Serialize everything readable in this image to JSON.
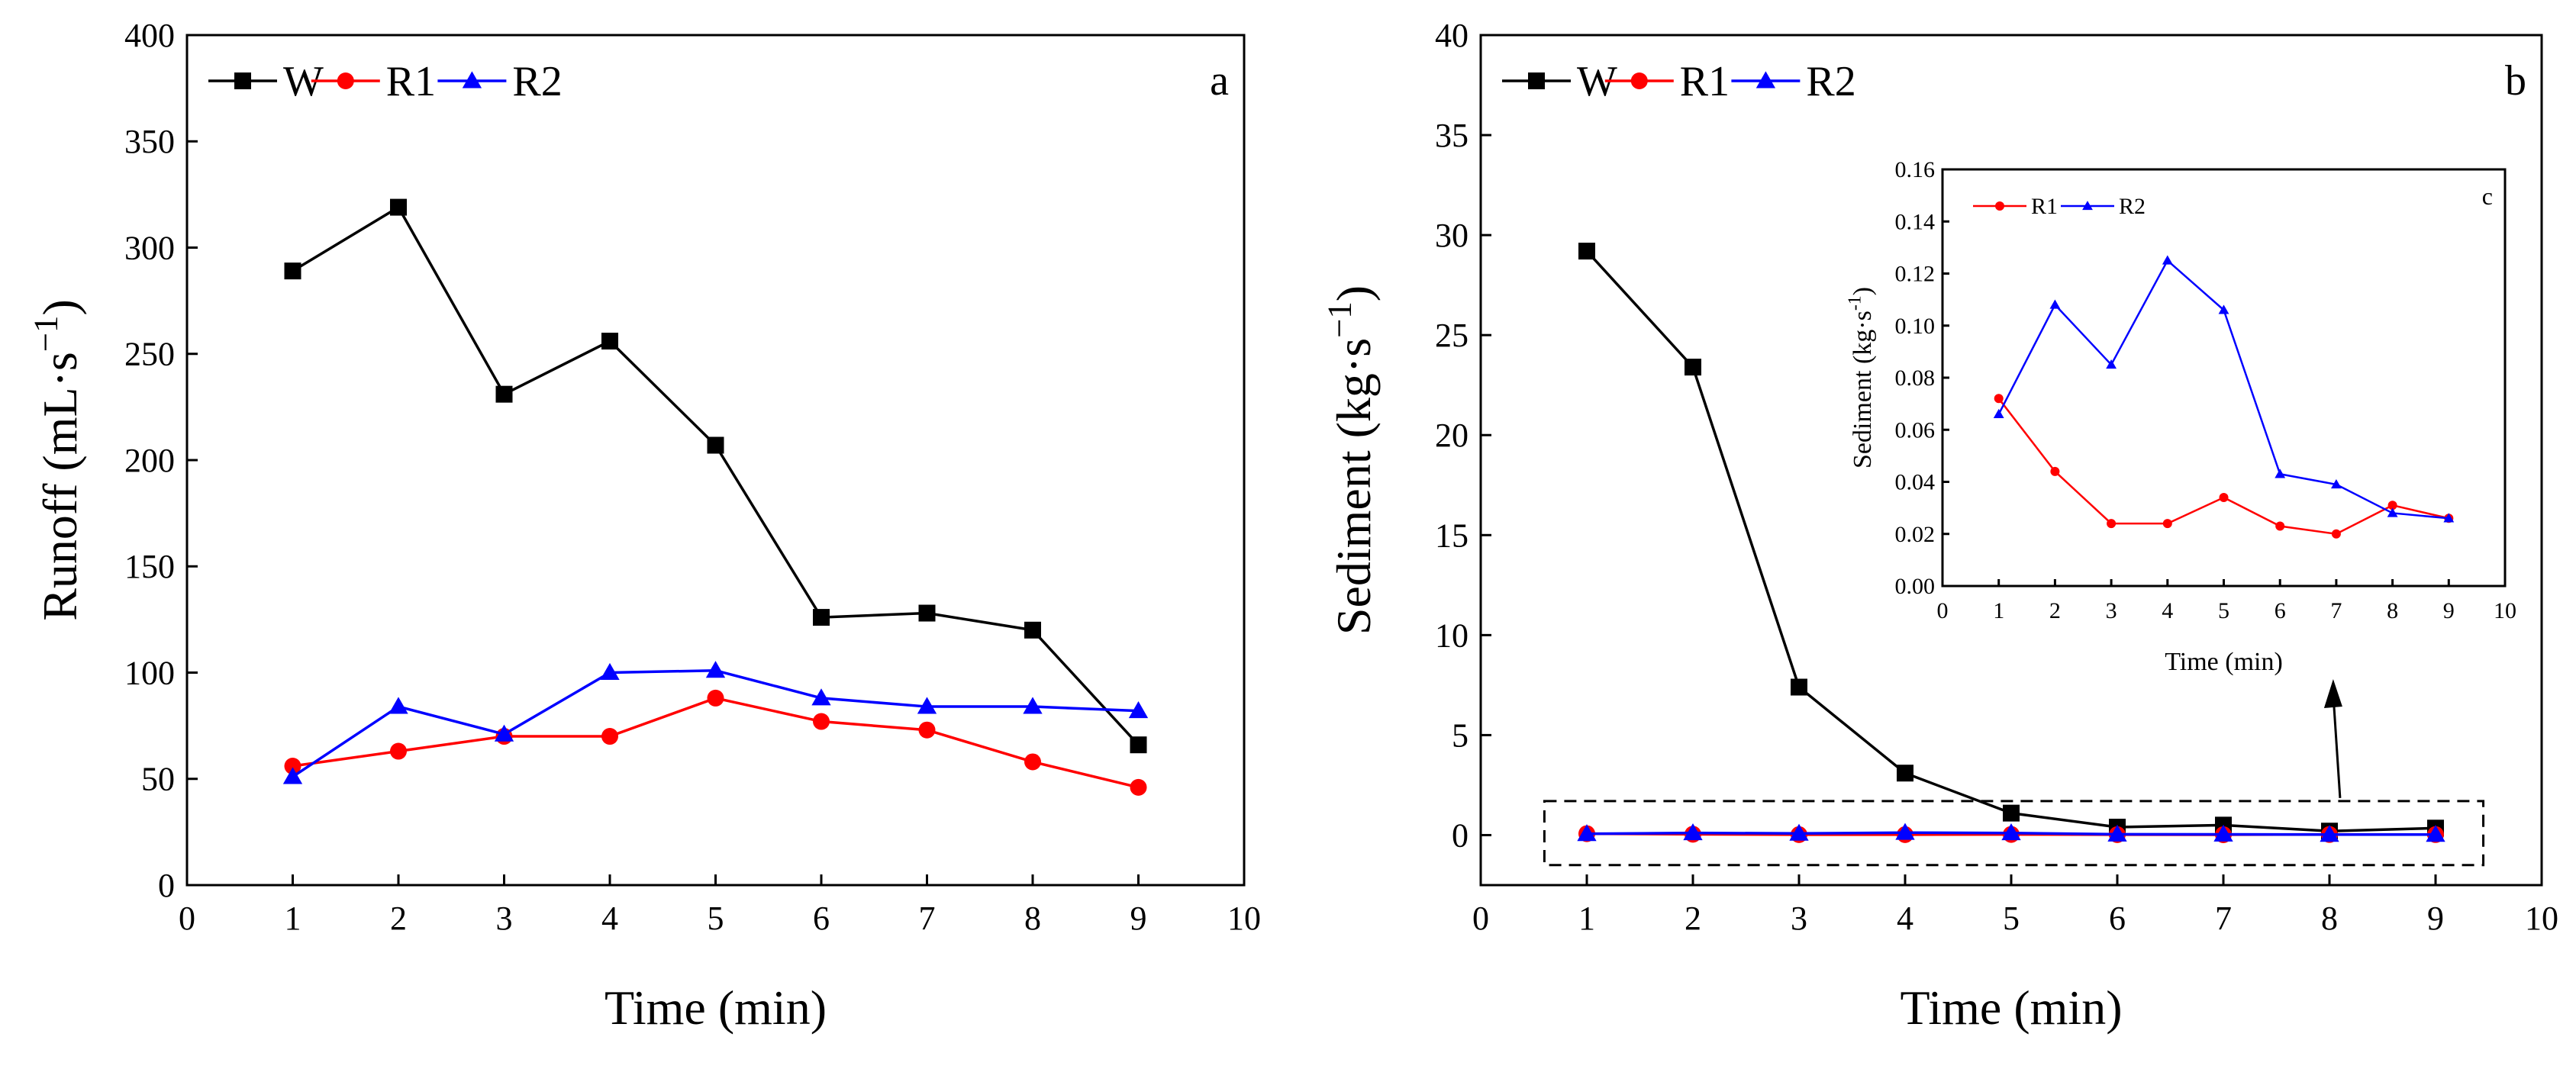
{
  "chart_data": [
    {
      "panel": "a",
      "type": "line",
      "panel_label": "a",
      "xlabel": "Time (min)",
      "ylabel": "Runoff (mL·s",
      "ylabel_sup": "−1",
      "xlim": [
        0,
        10
      ],
      "ylim": [
        0,
        400
      ],
      "xticks": [
        0,
        1,
        2,
        3,
        4,
        5,
        6,
        7,
        8,
        9,
        10
      ],
      "yticks": [
        0,
        50,
        100,
        150,
        200,
        250,
        300,
        350,
        400
      ],
      "legend_position": "top-left",
      "x": [
        1,
        2,
        3,
        4,
        5,
        6,
        7,
        8,
        9
      ],
      "series": [
        {
          "name": "W",
          "color": "#000000",
          "marker": "square",
          "values": [
            289,
            319,
            231,
            256,
            207,
            126,
            128,
            120,
            66
          ]
        },
        {
          "name": "R1",
          "color": "#ff0000",
          "marker": "circle",
          "values": [
            56,
            63,
            70,
            70,
            88,
            77,
            73,
            58,
            46
          ]
        },
        {
          "name": "R2",
          "color": "#0000ff",
          "marker": "triangle",
          "values": [
            51,
            84,
            71,
            100,
            101,
            88,
            84,
            84,
            82
          ]
        }
      ]
    },
    {
      "panel": "b",
      "type": "line",
      "panel_label": "b",
      "xlabel": "Time (min)",
      "ylabel": "Sediment (kg·s",
      "ylabel_sup": "−1",
      "xlim": [
        0,
        10
      ],
      "ylim": [
        -2.5,
        40
      ],
      "xticks": [
        0,
        1,
        2,
        3,
        4,
        5,
        6,
        7,
        8,
        9,
        10
      ],
      "yticks": [
        0,
        5,
        10,
        15,
        20,
        25,
        30,
        35,
        40
      ],
      "legend_position": "top-left",
      "highlight_box": {
        "xlim": [
          0.6,
          9.45
        ],
        "ylim": [
          -1.5,
          1.7
        ]
      },
      "x": [
        1,
        2,
        3,
        4,
        5,
        6,
        7,
        8,
        9
      ],
      "series": [
        {
          "name": "W",
          "color": "#000000",
          "marker": "square",
          "values": [
            29.2,
            23.4,
            7.4,
            3.1,
            1.1,
            0.4,
            0.5,
            0.2,
            0.35
          ]
        },
        {
          "name": "R1",
          "color": "#ff0000",
          "marker": "circle",
          "values": [
            0.072,
            0.044,
            0.024,
            0.024,
            0.034,
            0.023,
            0.02,
            0.031,
            0.026
          ]
        },
        {
          "name": "R2",
          "color": "#0000ff",
          "marker": "triangle",
          "values": [
            0.066,
            0.108,
            0.085,
            0.125,
            0.106,
            0.043,
            0.039,
            0.028,
            0.026
          ]
        }
      ]
    },
    {
      "panel": "c",
      "type": "line",
      "panel_label": "c",
      "inset_of": "b",
      "xlabel": "Time (min)",
      "ylabel": "Sediment (kg·s",
      "ylabel_sup": "-1",
      "ylabel_tail": ")",
      "xlim": [
        0,
        10
      ],
      "ylim": [
        0,
        0.16
      ],
      "xticks": [
        0,
        1,
        2,
        3,
        4,
        5,
        6,
        7,
        8,
        9,
        10
      ],
      "yticks": [
        "0.00",
        "0.02",
        "0.04",
        "0.06",
        "0.08",
        "0.10",
        "0.12",
        "0.14",
        "0.16"
      ],
      "legend_position": "top-left",
      "x": [
        1,
        2,
        3,
        4,
        5,
        6,
        7,
        8,
        9
      ],
      "series": [
        {
          "name": "R1",
          "color": "#ff0000",
          "marker": "circle",
          "values": [
            0.072,
            0.044,
            0.024,
            0.024,
            0.034,
            0.023,
            0.02,
            0.031,
            0.026
          ]
        },
        {
          "name": "R2",
          "color": "#0000ff",
          "marker": "triangle",
          "values": [
            0.066,
            0.108,
            0.085,
            0.125,
            0.106,
            0.043,
            0.039,
            0.028,
            0.026
          ]
        }
      ]
    }
  ]
}
